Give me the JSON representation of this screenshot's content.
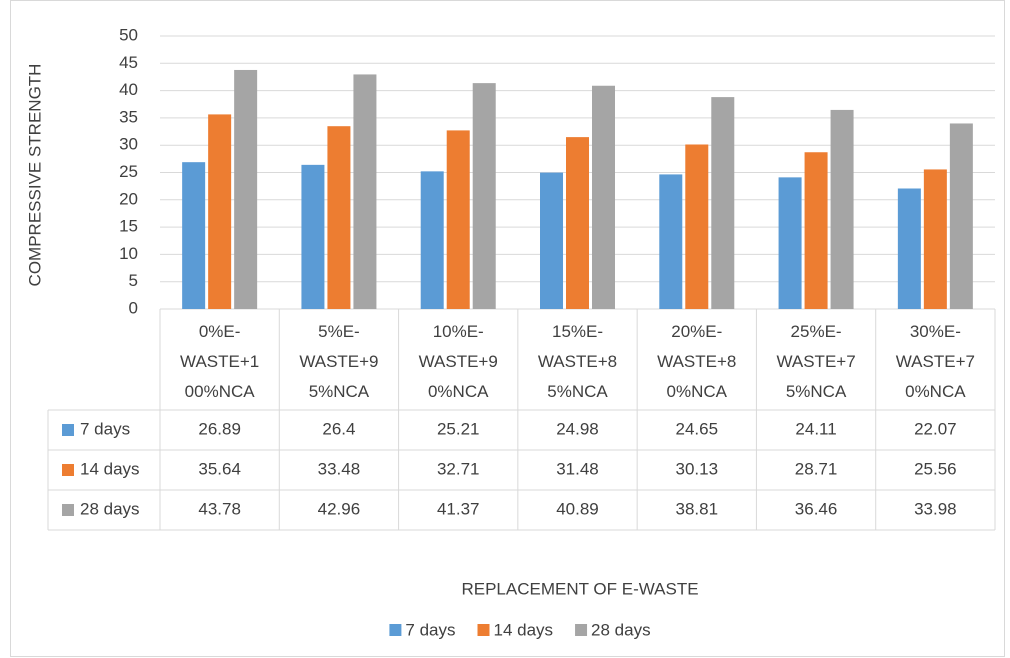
{
  "chart_data": {
    "type": "bar",
    "xlabel": "REPLACEMENT OF E-WASTE",
    "ylabel": "COMPRESSIVE STRENGTH",
    "categories": [
      "0%E-WASTE+100%NCA",
      "5%E-WASTE+95%NCA",
      "10%E-WASTE+90%NCA",
      "15%E-WASTE+85%NCA",
      "20%E-WASTE+80%NCA",
      "25%E-WASTE+75%NCA",
      "30%E-WASTE+70%NCA"
    ],
    "series": [
      {
        "name": "7 days",
        "color": "#5b9bd5",
        "values": [
          26.89,
          26.4,
          25.21,
          24.98,
          24.65,
          24.11,
          22.07
        ]
      },
      {
        "name": "14 days",
        "color": "#ed7d31",
        "values": [
          35.64,
          33.48,
          32.71,
          31.48,
          30.13,
          28.71,
          25.56
        ]
      },
      {
        "name": "28 days",
        "color": "#a5a5a5",
        "values": [
          43.78,
          42.96,
          41.37,
          40.89,
          38.81,
          36.46,
          33.98
        ]
      }
    ],
    "ylim": [
      0,
      50
    ],
    "yticks": [
      0,
      5,
      10,
      15,
      20,
      25,
      30,
      35,
      40,
      45,
      50
    ],
    "grid": true,
    "legend": "bottom",
    "data_table": true
  }
}
